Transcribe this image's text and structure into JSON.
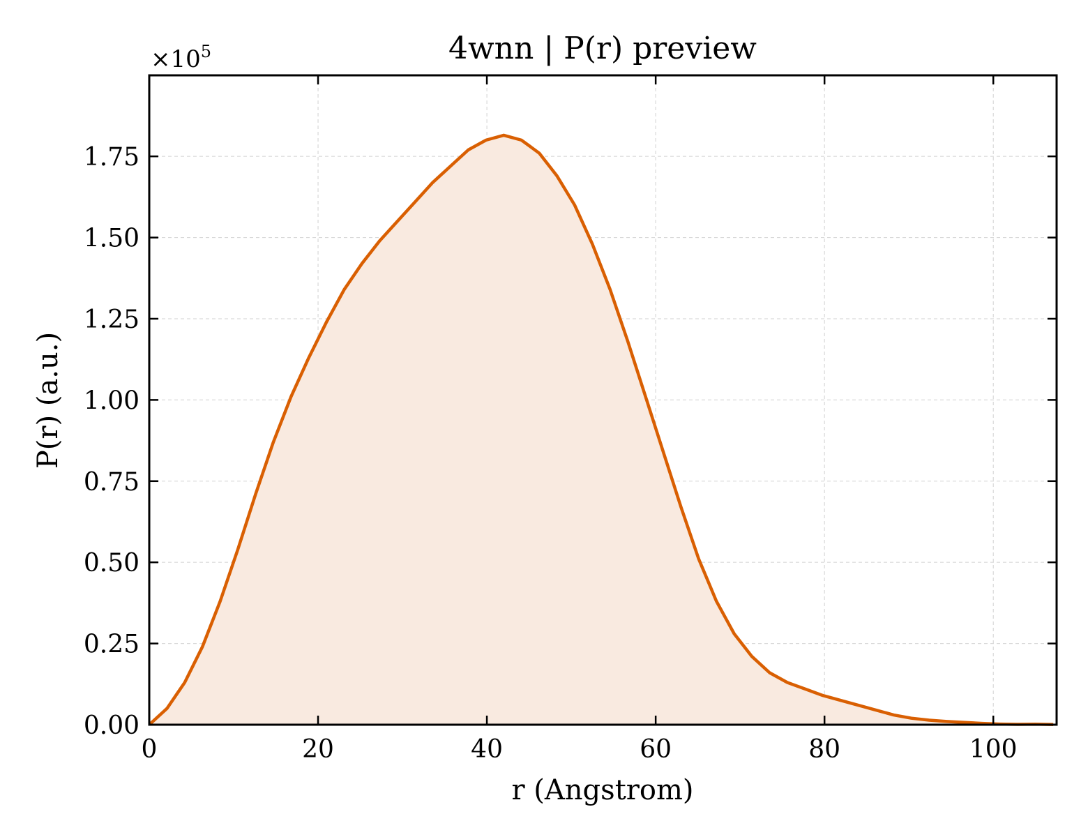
{
  "chart_data": {
    "type": "area",
    "title": "4wnn | P(r) preview",
    "xlabel": "r (Angstrom)",
    "ylabel": "P(r) (a.u.)",
    "y_scale_label": "×10",
    "y_scale_exponent": "5",
    "xlim": [
      0,
      107.5
    ],
    "ylim": [
      0,
      1.9995
    ],
    "y_multiplier": 100000,
    "x_ticks": [
      0,
      20,
      40,
      60,
      80,
      100
    ],
    "x_tick_labels": [
      "0",
      "20",
      "40",
      "60",
      "80",
      "100"
    ],
    "y_ticks": [
      0,
      0.25,
      0.5,
      0.75,
      1.0,
      1.25,
      1.5,
      1.75
    ],
    "y_tick_labels": [
      "0.00",
      "0.25",
      "0.50",
      "0.75",
      "1.00",
      "1.25",
      "1.50",
      "1.75"
    ],
    "grid": true,
    "colors": {
      "line": "#d95f02",
      "fill": "#f9eae0",
      "grid": "#d9d9d9"
    },
    "series": [
      {
        "x": [
          0,
          2.1,
          4.2,
          6.3,
          8.4,
          10.5,
          12.6,
          14.7,
          16.8,
          18.9,
          21.0,
          23.1,
          25.2,
          27.3,
          29.4,
          31.5,
          33.6,
          35.7,
          37.8,
          39.9,
          42.0,
          44.1,
          46.2,
          48.3,
          50.4,
          52.5,
          54.6,
          56.7,
          58.8,
          60.9,
          63.0,
          65.1,
          67.2,
          69.3,
          71.4,
          73.5,
          75.6,
          77.7,
          79.8,
          81.9,
          84.0,
          86.1,
          88.2,
          90.3,
          92.4,
          94.5,
          96.6,
          98.7,
          100.8,
          102.9,
          105.0,
          107.1
        ],
        "values": [
          0,
          0.05,
          0.13,
          0.24,
          0.38,
          0.54,
          0.71,
          0.87,
          1.01,
          1.13,
          1.24,
          1.34,
          1.42,
          1.49,
          1.55,
          1.61,
          1.67,
          1.72,
          1.77,
          1.8,
          1.815,
          1.8,
          1.76,
          1.69,
          1.6,
          1.48,
          1.34,
          1.18,
          1.01,
          0.84,
          0.67,
          0.51,
          0.38,
          0.28,
          0.21,
          0.16,
          0.13,
          0.11,
          0.09,
          0.075,
          0.06,
          0.045,
          0.03,
          0.02,
          0.014,
          0.01,
          0.007,
          0.004,
          0.002,
          0.001,
          0.0015,
          0.0005
        ]
      }
    ]
  }
}
